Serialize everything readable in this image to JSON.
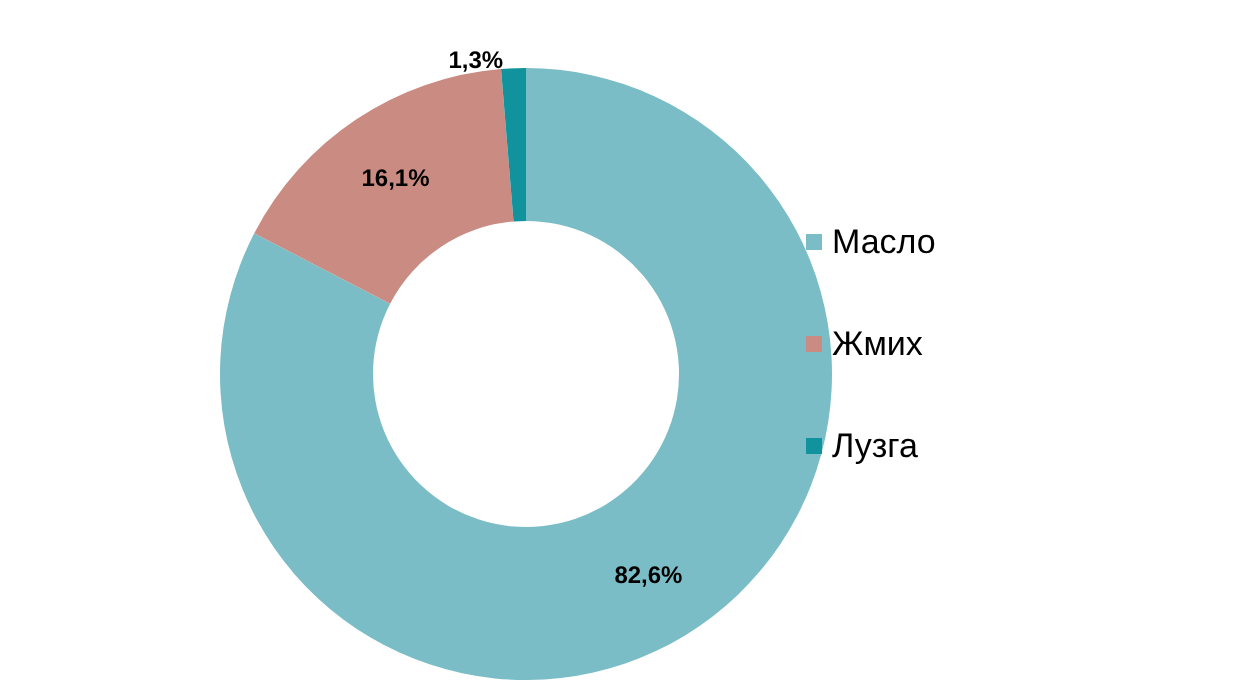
{
  "chart_data": {
    "type": "donut",
    "categories": [
      "Масло",
      "Жмих",
      "Лузга"
    ],
    "values": [
      82.6,
      16.1,
      1.3
    ],
    "colors": [
      "#7bbdc6",
      "#c98b82",
      "#10939c"
    ],
    "value_labels": [
      "82,6%",
      "16,1%",
      "1,3%"
    ],
    "legend": "right"
  }
}
